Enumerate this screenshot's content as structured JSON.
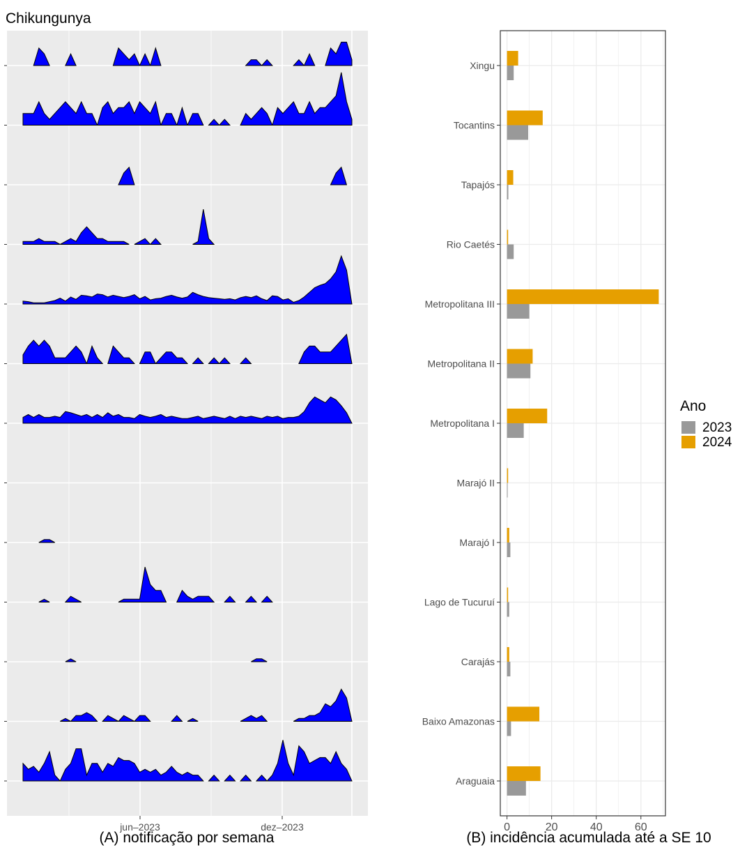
{
  "page": {
    "title": "Chikungunya",
    "caption_a": "(A) notificação por semana",
    "caption_b": "(B) incidência acumulada até a SE 10"
  },
  "colors": {
    "panel_bg": "#ebebeb",
    "area_fill": "#0000ff",
    "bar_2023": "#999999",
    "bar_2024": "#e69f00"
  },
  "chart_data": [
    {
      "type": "area",
      "subtitle": "(A) notificação por semana",
      "x_ticks": [
        "jun–2023",
        "dez–2023"
      ],
      "x_range_weeks": [
        1,
        63
      ],
      "x_unit": "semana",
      "grid": true,
      "note": "Sparklines por região (de cima para baixo): Xingu, Tocantins, Tapajós, Rio Caetés, Metropolitana III, Metropolitana II, Metropolitana I, Marajó II, Marajó I, Lago de Tucuruí, Carajás, Baixo Amazonas, Araguaia. Valores em escala relativa (0–1) ao máximo de cada linha.",
      "series": [
        {
          "region": "Xingu",
          "values": [
            0,
            0,
            0,
            0.3,
            0.2,
            0,
            0,
            0,
            0,
            0.2,
            0,
            0,
            0,
            0,
            0,
            0,
            0,
            0,
            0.3,
            0.2,
            0.1,
            0.2,
            0,
            0.2,
            0,
            0.3,
            0,
            0,
            0,
            0,
            0,
            0,
            0,
            0,
            0,
            0,
            0,
            0,
            0,
            0,
            0,
            0,
            0,
            0.1,
            0.1,
            0,
            0.1,
            0,
            0,
            0,
            0,
            0,
            0.1,
            0,
            0.2,
            0,
            0,
            0,
            0.3,
            0.2,
            0.4,
            0.4,
            0.1
          ]
        },
        {
          "region": "Tocantins",
          "values": [
            0.2,
            0.2,
            0.2,
            0.4,
            0.2,
            0.1,
            0.2,
            0.3,
            0.4,
            0.3,
            0.2,
            0.4,
            0.2,
            0.2,
            0,
            0.3,
            0.4,
            0.2,
            0.3,
            0.3,
            0.4,
            0.2,
            0.4,
            0.3,
            0.2,
            0.4,
            0,
            0.2,
            0.2,
            0,
            0.3,
            0,
            0.2,
            0.2,
            0,
            0,
            0.1,
            0,
            0.1,
            0,
            0,
            0,
            0.2,
            0.1,
            0.2,
            0.3,
            0.2,
            0,
            0.3,
            0.2,
            0.3,
            0.4,
            0.2,
            0.2,
            0.4,
            0.2,
            0.3,
            0.3,
            0.4,
            0.5,
            0.9,
            0.4,
            0.1
          ]
        },
        {
          "region": "Tapajós",
          "values": [
            0,
            0,
            0,
            0,
            0,
            0,
            0,
            0,
            0,
            0,
            0,
            0,
            0,
            0,
            0,
            0,
            0,
            0,
            0,
            0.2,
            0.3,
            0,
            0,
            0,
            0,
            0,
            0,
            0,
            0,
            0,
            0,
            0,
            0,
            0,
            0,
            0,
            0,
            0,
            0,
            0,
            0,
            0,
            0,
            0,
            0,
            0,
            0,
            0,
            0,
            0,
            0,
            0,
            0,
            0,
            0,
            0,
            0,
            0,
            0,
            0.2,
            0.3,
            0,
            0
          ]
        },
        {
          "region": "Rio Caetés",
          "values": [
            0.05,
            0.05,
            0.05,
            0.1,
            0.05,
            0.05,
            0.05,
            0,
            0.05,
            0.1,
            0.05,
            0.2,
            0.3,
            0.2,
            0.1,
            0.1,
            0.05,
            0.05,
            0.05,
            0.05,
            0,
            0,
            0.05,
            0.1,
            0,
            0.1,
            0,
            0,
            0,
            0,
            0,
            0,
            0,
            0.05,
            0.6,
            0.1,
            0,
            0,
            0,
            0,
            0,
            0,
            0,
            0,
            0,
            0,
            0,
            0,
            0,
            0,
            0,
            0,
            0,
            0,
            0,
            0,
            0,
            0,
            0,
            0,
            0,
            0,
            0
          ]
        },
        {
          "region": "Metropolitana III",
          "values": [
            0.05,
            0.04,
            0.02,
            0.02,
            0.02,
            0.04,
            0.06,
            0.1,
            0.05,
            0.12,
            0.08,
            0.15,
            0.14,
            0.12,
            0.17,
            0.16,
            0.12,
            0.15,
            0.13,
            0.11,
            0.13,
            0.16,
            0.09,
            0.13,
            0.07,
            0.09,
            0.1,
            0.13,
            0.15,
            0.12,
            0.1,
            0.12,
            0.2,
            0.16,
            0.13,
            0.11,
            0.1,
            0.09,
            0.08,
            0.09,
            0.07,
            0.11,
            0.13,
            0.11,
            0.14,
            0.09,
            0.06,
            0.14,
            0.13,
            0.07,
            0.09,
            0.03,
            0.06,
            0.12,
            0.2,
            0.28,
            0.32,
            0.35,
            0.43,
            0.55,
            0.82,
            0.58,
            0.0
          ]
        },
        {
          "region": "Metropolitana II",
          "values": [
            0.15,
            0.3,
            0.4,
            0.3,
            0.4,
            0.3,
            0.1,
            0.1,
            0.1,
            0.2,
            0.3,
            0.2,
            0,
            0.3,
            0.1,
            0,
            0,
            0.3,
            0.2,
            0.1,
            0.1,
            0,
            0,
            0.2,
            0.2,
            0,
            0.1,
            0.2,
            0.2,
            0.1,
            0.1,
            0,
            0,
            0.1,
            0,
            0,
            0.1,
            0,
            0.1,
            0,
            0,
            0,
            0.1,
            0,
            0,
            0,
            0,
            0,
            0,
            0,
            0,
            0,
            0,
            0.2,
            0.3,
            0.3,
            0.2,
            0.2,
            0.2,
            0.3,
            0.4,
            0.5,
            0
          ]
        },
        {
          "region": "Metropolitana I",
          "values": [
            0.1,
            0.15,
            0.1,
            0.15,
            0.1,
            0.1,
            0.12,
            0.1,
            0.2,
            0.18,
            0.15,
            0.12,
            0.15,
            0.1,
            0.15,
            0.1,
            0.18,
            0.12,
            0.15,
            0.1,
            0.1,
            0.08,
            0.15,
            0.12,
            0.1,
            0.12,
            0.15,
            0.1,
            0.12,
            0.1,
            0.08,
            0.08,
            0.1,
            0.12,
            0.08,
            0.1,
            0.12,
            0.1,
            0.08,
            0.12,
            0.08,
            0.12,
            0.1,
            0.12,
            0.1,
            0.08,
            0.12,
            0.1,
            0.12,
            0.08,
            0.1,
            0.1,
            0.12,
            0.2,
            0.35,
            0.45,
            0.4,
            0.35,
            0.45,
            0.4,
            0.3,
            0.18,
            0
          ]
        },
        {
          "region": "Marajó II",
          "values": [
            0,
            0,
            0,
            0,
            0,
            0,
            0,
            0,
            0,
            0,
            0,
            0,
            0,
            0,
            0,
            0,
            0,
            0,
            0,
            0,
            0,
            0,
            0,
            0,
            0,
            0,
            0,
            0,
            0,
            0,
            0,
            0,
            0,
            0,
            0,
            0,
            0,
            0,
            0,
            0,
            0,
            0,
            0,
            0,
            0,
            0,
            0,
            0,
            0,
            0,
            0,
            0,
            0,
            0,
            0,
            0,
            0,
            0,
            0,
            0,
            0,
            0,
            0
          ]
        },
        {
          "region": "Marajó I",
          "values": [
            0,
            0,
            0,
            0,
            0.05,
            0.05,
            0,
            0,
            0,
            0,
            0,
            0,
            0,
            0,
            0,
            0,
            0,
            0,
            0,
            0,
            0,
            0,
            0,
            0,
            0,
            0,
            0,
            0,
            0,
            0,
            0,
            0,
            0,
            0,
            0,
            0,
            0,
            0,
            0,
            0,
            0,
            0,
            0,
            0,
            0,
            0,
            0,
            0,
            0,
            0,
            0,
            0,
            0,
            0,
            0,
            0,
            0,
            0,
            0,
            0,
            0,
            0,
            0
          ]
        },
        {
          "region": "Lago de Tucuruí",
          "values": [
            0,
            0,
            0,
            0,
            0.05,
            0,
            0,
            0,
            0,
            0.1,
            0.05,
            0,
            0,
            0,
            0,
            0,
            0,
            0,
            0,
            0.05,
            0.05,
            0.05,
            0.05,
            0.6,
            0.3,
            0.2,
            0.2,
            0,
            0,
            0,
            0.2,
            0.1,
            0.05,
            0.1,
            0.1,
            0.1,
            0,
            0,
            0,
            0.1,
            0,
            0,
            0,
            0.1,
            0,
            0,
            0.1,
            0,
            0,
            0,
            0,
            0,
            0,
            0,
            0,
            0,
            0,
            0,
            0,
            0,
            0,
            0,
            0
          ]
        },
        {
          "region": "Carajás",
          "values": [
            0,
            0,
            0,
            0,
            0,
            0,
            0,
            0,
            0,
            0.05,
            0,
            0,
            0,
            0,
            0,
            0,
            0,
            0,
            0,
            0,
            0,
            0,
            0,
            0,
            0,
            0,
            0,
            0,
            0,
            0,
            0,
            0,
            0,
            0,
            0,
            0,
            0,
            0,
            0,
            0,
            0,
            0,
            0,
            0,
            0.05,
            0.05,
            0,
            0,
            0,
            0,
            0,
            0,
            0,
            0,
            0,
            0,
            0,
            0,
            0,
            0,
            0,
            0,
            0
          ]
        },
        {
          "region": "Baixo Amazonas",
          "values": [
            0,
            0,
            0,
            0,
            0,
            0,
            0,
            0,
            0.05,
            0,
            0.1,
            0.1,
            0.15,
            0.1,
            0,
            0,
            0.1,
            0.05,
            0,
            0.1,
            0.05,
            0,
            0.1,
            0.1,
            0,
            0,
            0,
            0,
            0,
            0.1,
            0,
            0,
            0.05,
            0,
            0,
            0,
            0,
            0,
            0,
            0,
            0,
            0,
            0.05,
            0.1,
            0.05,
            0.1,
            0,
            0,
            0,
            0,
            0,
            0,
            0.05,
            0.05,
            0.1,
            0.1,
            0.15,
            0.3,
            0.25,
            0.35,
            0.55,
            0.4,
            0
          ]
        },
        {
          "region": "Araguaia",
          "values": [
            0.3,
            0.2,
            0.25,
            0.15,
            0.3,
            0.5,
            0.1,
            0,
            0.2,
            0.3,
            0.55,
            0.55,
            0.1,
            0.3,
            0.3,
            0.15,
            0.3,
            0.25,
            0.4,
            0.35,
            0.35,
            0.3,
            0.15,
            0.2,
            0.15,
            0.2,
            0.1,
            0.15,
            0.25,
            0.15,
            0.1,
            0.15,
            0.1,
            0.1,
            0,
            0,
            0.1,
            0,
            0,
            0.1,
            0,
            0,
            0.1,
            0,
            0,
            0.1,
            0,
            0.1,
            0.3,
            0.7,
            0.3,
            0.1,
            0.6,
            0.5,
            0.3,
            0.35,
            0.4,
            0.4,
            0.3,
            0.5,
            0.3,
            0.2,
            0
          ]
        }
      ]
    },
    {
      "type": "bar",
      "orientation": "horizontal",
      "subtitle": "(B) incidência acumulada até a SE 10",
      "categories": [
        "Xingu",
        "Tocantins",
        "Tapajós",
        "Rio Caetés",
        "Metropolitana III",
        "Metropolitana II",
        "Metropolitana I",
        "Marajó II",
        "Marajó I",
        "Lago de Tucuruí",
        "Carajás",
        "Baixo Amazonas",
        "Araguaia"
      ],
      "series": [
        {
          "name": "2023",
          "values": [
            3.0,
            9.5,
            0.6,
            3.0,
            10.0,
            10.5,
            7.5,
            0.3,
            1.5,
            1.0,
            1.5,
            1.8,
            8.5
          ]
        },
        {
          "name": "2024",
          "values": [
            5.0,
            16.0,
            2.8,
            0.5,
            68.0,
            11.5,
            18.0,
            0.5,
            1.0,
            0.5,
            1.0,
            14.5,
            15.0
          ]
        }
      ],
      "x_ticks": [
        0,
        20,
        40,
        60
      ],
      "xlim": [
        -3,
        71
      ],
      "grid": true,
      "legend": {
        "title": "Ano",
        "labels": [
          "2023",
          "2024"
        ],
        "position": "right"
      }
    }
  ]
}
